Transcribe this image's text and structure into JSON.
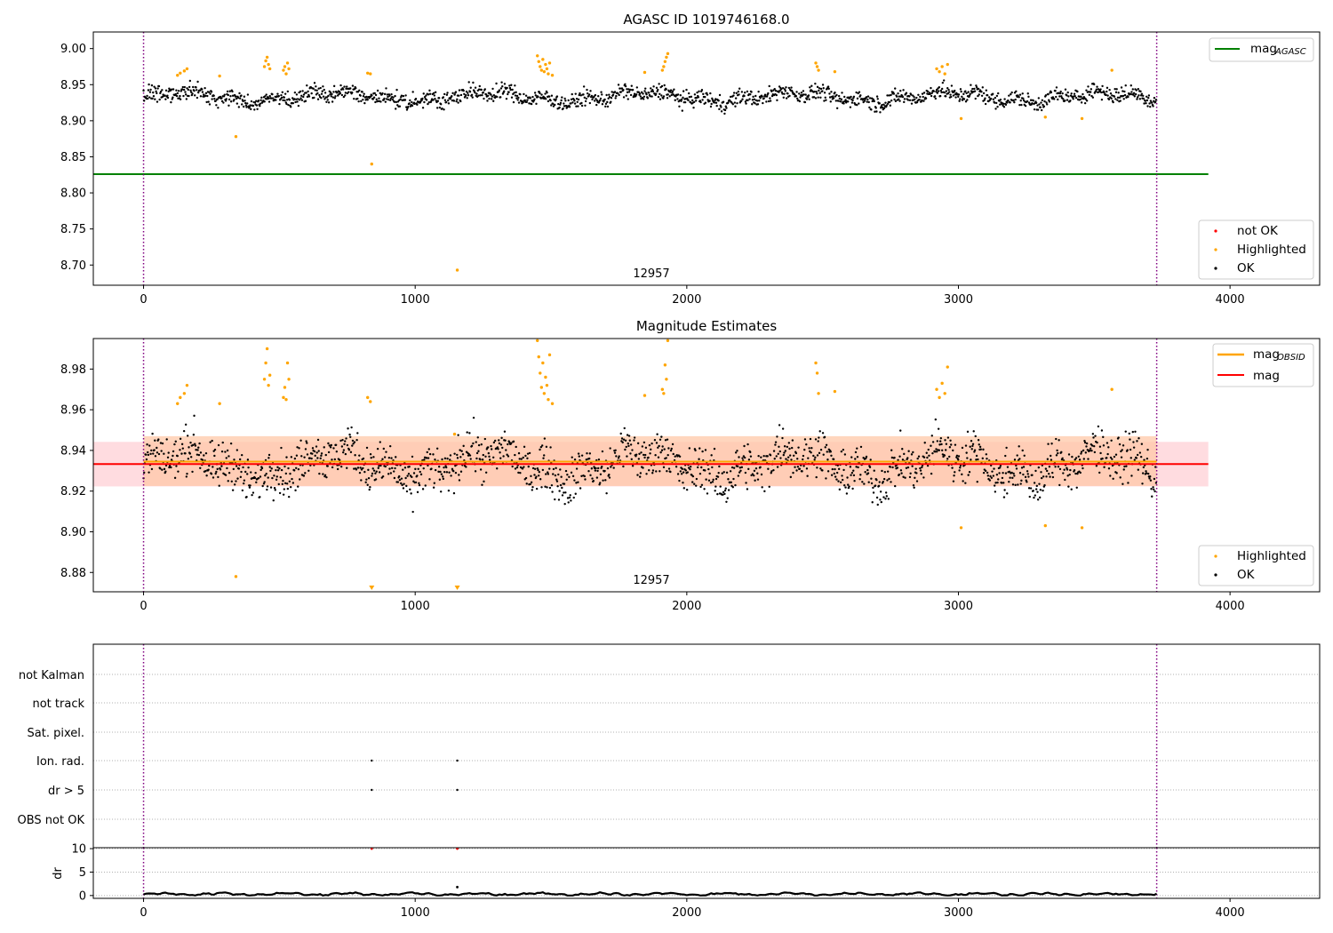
{
  "chart_data": [
    {
      "type": "scatter",
      "title": "AGASC ID 1019746168.0",
      "xlim": [
        -185,
        4330
      ],
      "ylim": [
        8.672,
        9.023
      ],
      "xticks": [
        0,
        1000,
        2000,
        3000,
        4000
      ],
      "yticks": [
        8.7,
        8.75,
        8.8,
        8.85,
        8.9,
        8.95,
        9.0
      ],
      "ytick_labels": [
        "8.70",
        "8.75",
        "8.80",
        "8.85",
        "8.90",
        "8.95",
        "9.00"
      ],
      "grid": false,
      "vlines": [
        0,
        3730
      ],
      "obsid_label": {
        "text": "12957",
        "x": 1865
      },
      "hlines": [
        {
          "name": "mag_AGASC",
          "label_main": "mag",
          "label_sub": "AGASC",
          "y": 8.826,
          "x": [
            -185,
            3920
          ],
          "color": "#008000"
        }
      ],
      "series": [
        {
          "name": "not OK",
          "color": "#ff0000",
          "points": []
        },
        {
          "name": "Highlighted",
          "color": "#ffa500",
          "points": [
            [
              125,
              8.963
            ],
            [
              135,
              8.966
            ],
            [
              150,
              8.969
            ],
            [
              160,
              8.972
            ],
            [
              280,
              8.962
            ],
            [
              340,
              8.878
            ],
            [
              445,
              8.975
            ],
            [
              450,
              8.983
            ],
            [
              455,
              8.988
            ],
            [
              460,
              8.978
            ],
            [
              465,
              8.972
            ],
            [
              515,
              8.97
            ],
            [
              520,
              8.975
            ],
            [
              525,
              8.965
            ],
            [
              530,
              8.98
            ],
            [
              535,
              8.972
            ],
            [
              825,
              8.966
            ],
            [
              835,
              8.965
            ],
            [
              840,
              8.84
            ],
            [
              1155,
              8.693
            ],
            [
              1450,
              8.99
            ],
            [
              1455,
              8.982
            ],
            [
              1460,
              8.975
            ],
            [
              1465,
              8.97
            ],
            [
              1470,
              8.985
            ],
            [
              1475,
              8.968
            ],
            [
              1480,
              8.978
            ],
            [
              1485,
              8.972
            ],
            [
              1490,
              8.965
            ],
            [
              1495,
              8.98
            ],
            [
              1505,
              8.963
            ],
            [
              1845,
              8.967
            ],
            [
              1910,
              8.97
            ],
            [
              1915,
              8.975
            ],
            [
              1920,
              8.982
            ],
            [
              1925,
              8.988
            ],
            [
              1930,
              8.993
            ],
            [
              2475,
              8.98
            ],
            [
              2480,
              8.975
            ],
            [
              2485,
              8.97
            ],
            [
              2545,
              8.968
            ],
            [
              2920,
              8.972
            ],
            [
              2930,
              8.968
            ],
            [
              2940,
              8.975
            ],
            [
              2950,
              8.965
            ],
            [
              2960,
              8.978
            ],
            [
              3010,
              8.903
            ],
            [
              3320,
              8.905
            ],
            [
              3455,
              8.903
            ],
            [
              3565,
              8.97
            ]
          ]
        },
        {
          "name": "OK",
          "color": "#000000",
          "band": {
            "x_start": 0,
            "x_end": 3730,
            "center": 8.933,
            "spread": 0.012,
            "n": 1700
          }
        }
      ],
      "legend_lines_placement": "upper right",
      "legend_points_placement": "lower right"
    },
    {
      "type": "scatter",
      "title": "Magnitude Estimates",
      "xlim": [
        -185,
        4330
      ],
      "ylim": [
        8.8705,
        8.995
      ],
      "xticks": [
        0,
        1000,
        2000,
        3000,
        4000
      ],
      "yticks": [
        8.88,
        8.9,
        8.92,
        8.94,
        8.96,
        8.98
      ],
      "ytick_labels": [
        "8.88",
        "8.90",
        "8.92",
        "8.94",
        "8.96",
        "8.98"
      ],
      "grid": false,
      "vlines": [
        0,
        3730
      ],
      "obsid_label": {
        "text": "12957",
        "x": 1865
      },
      "bands": [
        {
          "name": "mag band",
          "y0": 8.9223,
          "y1": 8.9442,
          "x": [
            -185,
            3920
          ],
          "color": "#ffd0d5"
        },
        {
          "name": "mag_OBSID band",
          "y0": 8.9225,
          "y1": 8.947,
          "x": [
            0,
            3730
          ],
          "color": "#ffc8a8"
        }
      ],
      "hlines": [
        {
          "name": "mag_OBSID",
          "label_main": "mag",
          "label_sub": "OBSID",
          "y": 8.9345,
          "x": [
            0,
            3730
          ],
          "color": "#ffa500"
        },
        {
          "name": "mag",
          "label_main": "mag",
          "label_sub": "",
          "y": 8.9333,
          "x": [
            -185,
            3920
          ],
          "color": "#ff0000"
        }
      ],
      "series": [
        {
          "name": "Highlighted",
          "color": "#ffa500",
          "points": [
            [
              125,
              8.963
            ],
            [
              135,
              8.966
            ],
            [
              150,
              8.968
            ],
            [
              160,
              8.972
            ],
            [
              280,
              8.963
            ],
            [
              340,
              8.878
            ],
            [
              445,
              8.975
            ],
            [
              450,
              8.983
            ],
            [
              455,
              8.99
            ],
            [
              460,
              8.972
            ],
            [
              465,
              8.977
            ],
            [
              515,
              8.966
            ],
            [
              520,
              8.971
            ],
            [
              525,
              8.965
            ],
            [
              530,
              8.983
            ],
            [
              535,
              8.975
            ],
            [
              825,
              8.966
            ],
            [
              835,
              8.964
            ],
            [
              1145,
              8.948
            ],
            [
              1450,
              8.994
            ],
            [
              1455,
              8.986
            ],
            [
              1460,
              8.978
            ],
            [
              1465,
              8.971
            ],
            [
              1470,
              8.983
            ],
            [
              1475,
              8.968
            ],
            [
              1480,
              8.976
            ],
            [
              1485,
              8.972
            ],
            [
              1490,
              8.965
            ],
            [
              1495,
              8.987
            ],
            [
              1505,
              8.963
            ],
            [
              1845,
              8.967
            ],
            [
              1910,
              8.97
            ],
            [
              1915,
              8.968
            ],
            [
              1920,
              8.982
            ],
            [
              1925,
              8.975
            ],
            [
              1930,
              8.994
            ],
            [
              2475,
              8.983
            ],
            [
              2480,
              8.978
            ],
            [
              2485,
              8.968
            ],
            [
              2545,
              8.969
            ],
            [
              2920,
              8.97
            ],
            [
              2930,
              8.966
            ],
            [
              2940,
              8.973
            ],
            [
              2950,
              8.968
            ],
            [
              2960,
              8.981
            ],
            [
              3010,
              8.902
            ],
            [
              3320,
              8.903
            ],
            [
              3455,
              8.902
            ],
            [
              3565,
              8.97
            ]
          ]
        },
        {
          "name": "OK",
          "color": "#000000",
          "band": {
            "x_start": 0,
            "x_end": 3730,
            "center": 8.933,
            "spread": 0.012,
            "n": 1700
          }
        }
      ],
      "out_of_range_markers": [
        {
          "x": 840,
          "color": "#ffa500"
        },
        {
          "x": 1155,
          "color": "#ffa500"
        }
      ],
      "legend_lines_placement": "upper right",
      "legend_points_placement": "lower right"
    },
    {
      "type": "scatter",
      "title": "",
      "xlim": [
        -185,
        4330
      ],
      "vlines": [
        0,
        3730
      ],
      "categories": [
        "OBS not OK",
        "dr > 5",
        "Ion. rad.",
        "Sat. pixel.",
        "not track",
        "not Kalman"
      ],
      "flags": [
        {
          "category": "Ion. rad.",
          "x": [
            840,
            1155
          ]
        },
        {
          "category": "dr > 5",
          "x": [
            840,
            1155
          ]
        }
      ],
      "grid": "dotted horizontal"
    },
    {
      "type": "line",
      "title": "",
      "ylabel": "dr",
      "xlim": [
        -185,
        4330
      ],
      "ylim": [
        -0.6,
        10.2
      ],
      "xticks": [
        0,
        1000,
        2000,
        3000,
        4000
      ],
      "yticks": [
        0,
        5,
        10
      ],
      "vlines": [
        0,
        3730
      ],
      "series": [
        {
          "name": "dr",
          "color": "#000000",
          "baseline": 0.3
        }
      ],
      "outliers": [
        {
          "x": 840,
          "y": 10,
          "color": "#ff0000"
        },
        {
          "x": 1155,
          "y": 10,
          "color": "#ff0000"
        },
        {
          "x": 1155,
          "y": 1.8,
          "color": "#000000"
        }
      ]
    }
  ]
}
